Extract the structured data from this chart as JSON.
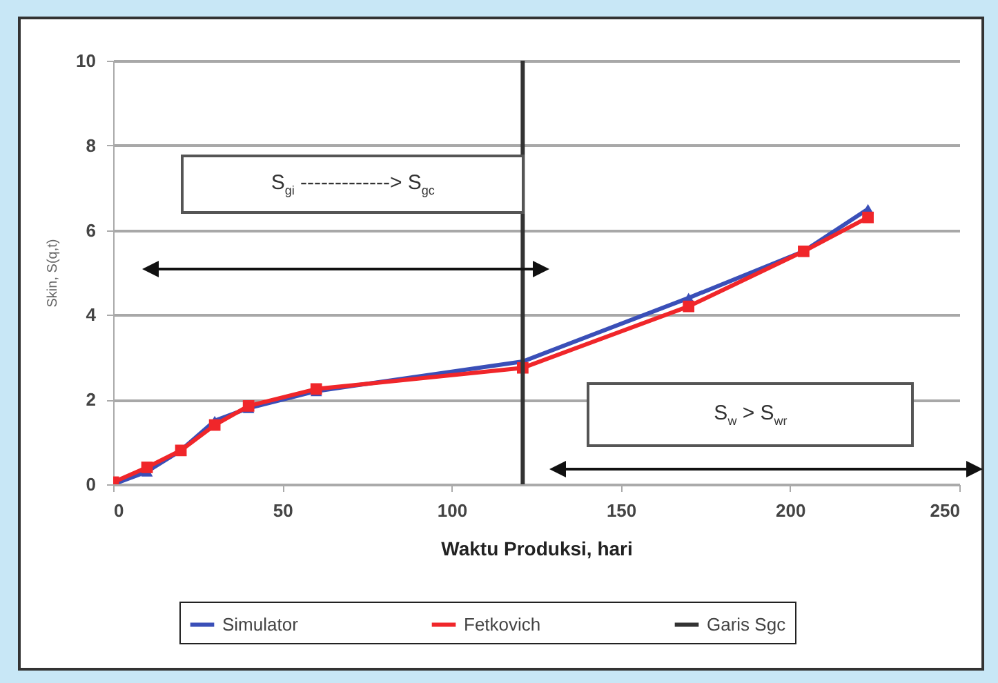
{
  "chart_data": {
    "type": "line",
    "xlabel": "Waktu Produksi, hari",
    "ylabel": "Skin, S(q,t)",
    "xlim": [
      0,
      250
    ],
    "xticks": [
      0,
      50,
      100,
      150,
      200,
      250
    ],
    "ylim": [
      0,
      10
    ],
    "yticks": [
      0,
      2,
      4,
      6,
      8,
      10
    ],
    "grid": "y",
    "legend": "bottom",
    "series": [
      {
        "name": "Simulator",
        "color": "#3a4fb8",
        "marker": "triangle",
        "x": [
          0,
          10,
          20,
          30,
          40,
          60,
          121,
          170,
          204,
          223
        ],
        "values": [
          0,
          0.3,
          0.8,
          1.5,
          1.8,
          2.2,
          2.9,
          4.4,
          5.5,
          6.5
        ]
      },
      {
        "name": "Fetkovich",
        "color": "#f0262a",
        "marker": "square",
        "x": [
          0,
          10,
          20,
          30,
          40,
          60,
          121,
          170,
          204,
          223
        ],
        "values": [
          0.05,
          0.4,
          0.8,
          1.4,
          1.85,
          2.25,
          2.75,
          4.2,
          5.5,
          6.3
        ]
      },
      {
        "name": "Garis Sgc",
        "color": "#333333",
        "marker": "none",
        "x": [
          121,
          121
        ],
        "values": [
          0,
          10
        ]
      }
    ],
    "annotations": [
      "S$_{gi}$ -------------> S$_{gc}$",
      "S$_{w}$ > S$_{wr}$"
    ]
  }
}
